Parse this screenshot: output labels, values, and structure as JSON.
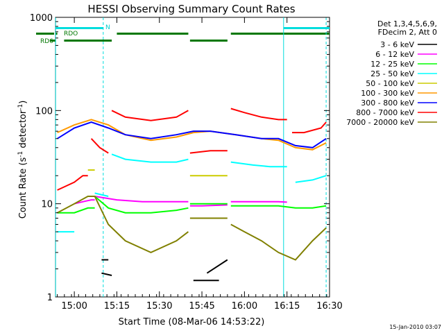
{
  "chart_data": {
    "type": "line",
    "title": "HESSI Observing Summary Count Rates",
    "xlabel": "Start Time (08-Mar-06 14:53:22)",
    "ylabel": "Count Rate (s",
    "ylabel_sup1": "-1",
    "ylabel_mid": " detector",
    "ylabel_sup2": "-1",
    "ylabel_end": ")",
    "yscale": "log",
    "xlim": [
      14.8894,
      16.5
    ],
    "ylim": [
      1,
      1000
    ],
    "xticks": [
      {
        "value": 15.0,
        "label": "15:00"
      },
      {
        "value": 15.25,
        "label": "15:15"
      },
      {
        "value": 15.5,
        "label": "15:30"
      },
      {
        "value": 15.75,
        "label": "15:45"
      },
      {
        "value": 16.0,
        "label": "16:00"
      },
      {
        "value": 16.25,
        "label": "16:15"
      },
      {
        "value": 16.5,
        "label": "16:30"
      }
    ],
    "yticks": [
      {
        "value": 1,
        "label": "1"
      },
      {
        "value": 10,
        "label": "10"
      },
      {
        "value": 100,
        "label": "100"
      },
      {
        "value": 1000,
        "label": "1000"
      }
    ],
    "legend_header": [
      "Det 1,3,4,5,6,9,",
      "FDecim 2, Att 0"
    ],
    "legend_placement": "right",
    "flag_labels": {
      "rdo": "RDO",
      "rd6": "RD6",
      "n": "N"
    },
    "flag_bars": {
      "cyan_top": [
        [
          14.89,
          15.17
        ],
        [
          16.23,
          16.5
        ]
      ],
      "green_rdo": [
        [
          14.89,
          14.9
        ],
        [
          15.25,
          15.67
        ],
        [
          15.92,
          16.5
        ]
      ],
      "green_rd6": [
        [
          14.94,
          15.22
        ],
        [
          15.68,
          15.9
        ]
      ]
    },
    "solid_verticals": [
      14.89,
      16.23
    ],
    "dashed_verticals": [
      15.17,
      16.48
    ],
    "timestamp": "15-Jan-2010 03:07",
    "series": [
      {
        "name": "3 - 6 keV",
        "color": "#000000",
        "segments": [
          [
            [
              15.16,
              2.5
            ],
            [
              15.2,
              2.5
            ]
          ],
          [
            [
              15.16,
              1.8
            ],
            [
              15.22,
              1.7
            ]
          ],
          [
            [
              15.78,
              1.8
            ],
            [
              15.9,
              2.5
            ]
          ],
          [
            [
              15.7,
              1.5
            ],
            [
              15.85,
              1.5
            ]
          ]
        ]
      },
      {
        "name": "6 - 12 keV",
        "color": "#ff00ff",
        "segments": [
          [
            [
              15.0,
              10
            ],
            [
              15.05,
              10.5
            ],
            [
              15.1,
              11
            ],
            [
              15.12,
              11
            ]
          ],
          [
            [
              15.12,
              12
            ],
            [
              15.25,
              11
            ],
            [
              15.4,
              10.5
            ],
            [
              15.55,
              10.5
            ],
            [
              15.67,
              10.5
            ]
          ],
          [
            [
              15.68,
              9.5
            ],
            [
              15.75,
              9.5
            ],
            [
              15.9,
              9.7
            ]
          ],
          [
            [
              15.92,
              10.5
            ],
            [
              16.0,
              10.5
            ],
            [
              16.1,
              10.5
            ],
            [
              16.2,
              10.5
            ],
            [
              16.25,
              10.4
            ]
          ]
        ]
      },
      {
        "name": "12 - 25 keV",
        "color": "#00ff00",
        "segments": [
          [
            [
              14.9,
              8
            ],
            [
              15.0,
              8
            ],
            [
              15.08,
              9
            ],
            [
              15.12,
              9
            ]
          ],
          [
            [
              15.12,
              12
            ],
            [
              15.2,
              9
            ],
            [
              15.3,
              8
            ],
            [
              15.45,
              8
            ],
            [
              15.6,
              8.5
            ],
            [
              15.67,
              9
            ]
          ],
          [
            [
              15.68,
              10
            ],
            [
              15.75,
              10
            ],
            [
              15.8,
              10
            ],
            [
              15.9,
              10
            ]
          ],
          [
            [
              15.92,
              9.5
            ],
            [
              16.0,
              9.5
            ],
            [
              16.1,
              9.5
            ],
            [
              16.2,
              9.5
            ],
            [
              16.3,
              9
            ],
            [
              16.4,
              9
            ],
            [
              16.48,
              9.5
            ]
          ]
        ]
      },
      {
        "name": "25 - 50 keV",
        "color": "#00ffff",
        "segments": [
          [
            [
              14.9,
              5
            ],
            [
              15.0,
              5
            ]
          ],
          [
            [
              15.12,
              13
            ],
            [
              15.2,
              12
            ]
          ],
          [
            [
              15.22,
              34
            ],
            [
              15.3,
              30
            ],
            [
              15.45,
              28
            ],
            [
              15.6,
              28
            ],
            [
              15.67,
              30
            ]
          ],
          [
            [
              15.92,
              28
            ],
            [
              16.05,
              26
            ],
            [
              16.15,
              25
            ],
            [
              16.25,
              25
            ]
          ],
          [
            [
              16.3,
              17
            ],
            [
              16.4,
              18
            ],
            [
              16.48,
              20
            ]
          ]
        ]
      },
      {
        "name": "50 - 100 keV",
        "color": "#cccc00",
        "segments": [
          [
            [
              15.08,
              23
            ],
            [
              15.12,
              23
            ]
          ],
          [
            [
              15.68,
              20
            ],
            [
              15.9,
              20
            ]
          ]
        ]
      },
      {
        "name": "100 - 300 keV",
        "color": "#ff9900",
        "segments": [
          [
            [
              14.9,
              58
            ],
            [
              15.0,
              70
            ],
            [
              15.1,
              80
            ],
            [
              15.2,
              70
            ],
            [
              15.3,
              55
            ],
            [
              15.45,
              48
            ],
            [
              15.6,
              52
            ],
            [
              15.7,
              58
            ],
            [
              15.8,
              60
            ],
            [
              15.95,
              55
            ],
            [
              16.1,
              50
            ],
            [
              16.2,
              48
            ],
            [
              16.3,
              40
            ],
            [
              16.4,
              38
            ],
            [
              16.48,
              45
            ]
          ]
        ]
      },
      {
        "name": "300 - 800 keV",
        "color": "#0000ff",
        "segments": [
          [
            [
              14.9,
              50
            ],
            [
              15.0,
              65
            ],
            [
              15.1,
              75
            ],
            [
              15.2,
              65
            ],
            [
              15.3,
              55
            ],
            [
              15.45,
              50
            ],
            [
              15.6,
              55
            ],
            [
              15.7,
              60
            ],
            [
              15.8,
              60
            ],
            [
              15.95,
              55
            ],
            [
              16.1,
              50
            ],
            [
              16.2,
              50
            ],
            [
              16.3,
              42
            ],
            [
              16.4,
              40
            ],
            [
              16.48,
              50
            ]
          ]
        ]
      },
      {
        "name": "800 - 7000 keV",
        "color": "#ff0000",
        "segments": [
          [
            [
              14.9,
              14
            ],
            [
              15.0,
              17
            ],
            [
              15.05,
              20
            ],
            [
              15.08,
              20
            ]
          ],
          [
            [
              15.1,
              50
            ],
            [
              15.15,
              40
            ],
            [
              15.2,
              35
            ]
          ],
          [
            [
              15.22,
              100
            ],
            [
              15.3,
              85
            ],
            [
              15.45,
              78
            ],
            [
              15.6,
              85
            ],
            [
              15.67,
              100
            ]
          ],
          [
            [
              15.68,
              35
            ],
            [
              15.8,
              37
            ],
            [
              15.9,
              37
            ]
          ],
          [
            [
              15.92,
              105
            ],
            [
              16.0,
              95
            ],
            [
              16.1,
              85
            ],
            [
              16.2,
              80
            ],
            [
              16.25,
              80
            ]
          ],
          [
            [
              16.28,
              58
            ],
            [
              16.35,
              58
            ],
            [
              16.45,
              65
            ],
            [
              16.48,
              75
            ]
          ]
        ]
      },
      {
        "name": "7000 - 20000 keV",
        "color": "#808000",
        "segments": [
          [
            [
              14.9,
              8
            ],
            [
              15.0,
              10
            ],
            [
              15.08,
              12
            ],
            [
              15.12,
              12
            ],
            [
              15.2,
              6
            ],
            [
              15.3,
              4
            ],
            [
              15.45,
              3
            ],
            [
              15.6,
              4
            ],
            [
              15.67,
              5
            ]
          ],
          [
            [
              15.68,
              7
            ],
            [
              15.8,
              7
            ],
            [
              15.9,
              7
            ]
          ],
          [
            [
              15.92,
              6
            ],
            [
              16.0,
              5
            ],
            [
              16.1,
              4
            ],
            [
              16.2,
              3
            ],
            [
              16.3,
              2.5
            ],
            [
              16.4,
              4
            ],
            [
              16.48,
              5.5
            ]
          ]
        ]
      }
    ]
  }
}
